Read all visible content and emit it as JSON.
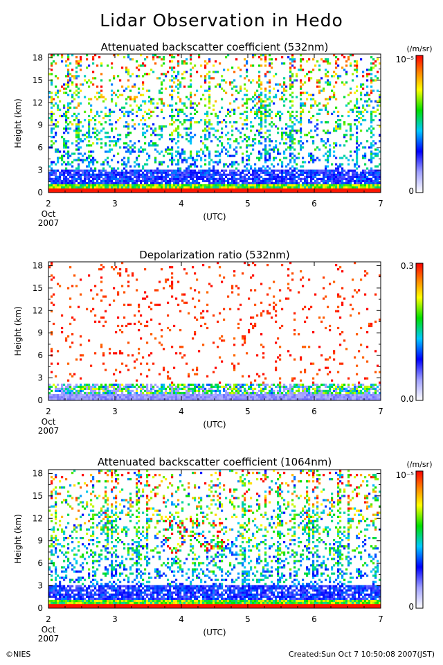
{
  "title": "Lidar Observation in Hedo",
  "footer": {
    "credit": "©NIES",
    "created": "Created:Sun Oct  7 10:50:08 2007(JST)"
  },
  "chart_data": [
    {
      "type": "heatmap",
      "title": "Attenuated backscatter coefficient (532nm)",
      "ylabel": "Height (km)",
      "xlabel": "(UTC)",
      "x_ticks": [
        "2",
        "3",
        "4",
        "5",
        "6",
        "7"
      ],
      "x_start_sub": [
        "Oct",
        "2007"
      ],
      "xlim": [
        2,
        7
      ],
      "y_ticks": [
        0,
        3,
        6,
        9,
        12,
        15,
        18
      ],
      "ylim": [
        0,
        18.5
      ],
      "colorbar": {
        "min_label": "0",
        "max_label": "10⁻⁵",
        "unit": "(/m/sr)"
      },
      "profile": "bs532"
    },
    {
      "type": "heatmap",
      "title": "Depolarization ratio (532nm)",
      "ylabel": "Height (km)",
      "xlabel": "(UTC)",
      "x_ticks": [
        "2",
        "3",
        "4",
        "5",
        "6",
        "7"
      ],
      "x_start_sub": [
        "Oct",
        "2007"
      ],
      "xlim": [
        2,
        7
      ],
      "y_ticks": [
        0,
        3,
        6,
        9,
        12,
        15,
        18
      ],
      "ylim": [
        0,
        18.5
      ],
      "colorbar": {
        "min_label": "0.0",
        "max_label": "0.3",
        "unit": ""
      },
      "profile": "dep532"
    },
    {
      "type": "heatmap",
      "title": "Attenuated backscatter coefficient (1064nm)",
      "ylabel": "Height (km)",
      "xlabel": "(UTC)",
      "x_ticks": [
        "2",
        "3",
        "4",
        "5",
        "6",
        "7"
      ],
      "x_start_sub": [
        "Oct",
        "2007"
      ],
      "xlim": [
        2,
        7
      ],
      "y_ticks": [
        0,
        3,
        6,
        9,
        12,
        15,
        18
      ],
      "ylim": [
        0,
        18.5
      ],
      "colorbar": {
        "min_label": "0",
        "max_label": "10⁻⁵",
        "unit": "(/m/sr)"
      },
      "profile": "bs1064"
    }
  ]
}
